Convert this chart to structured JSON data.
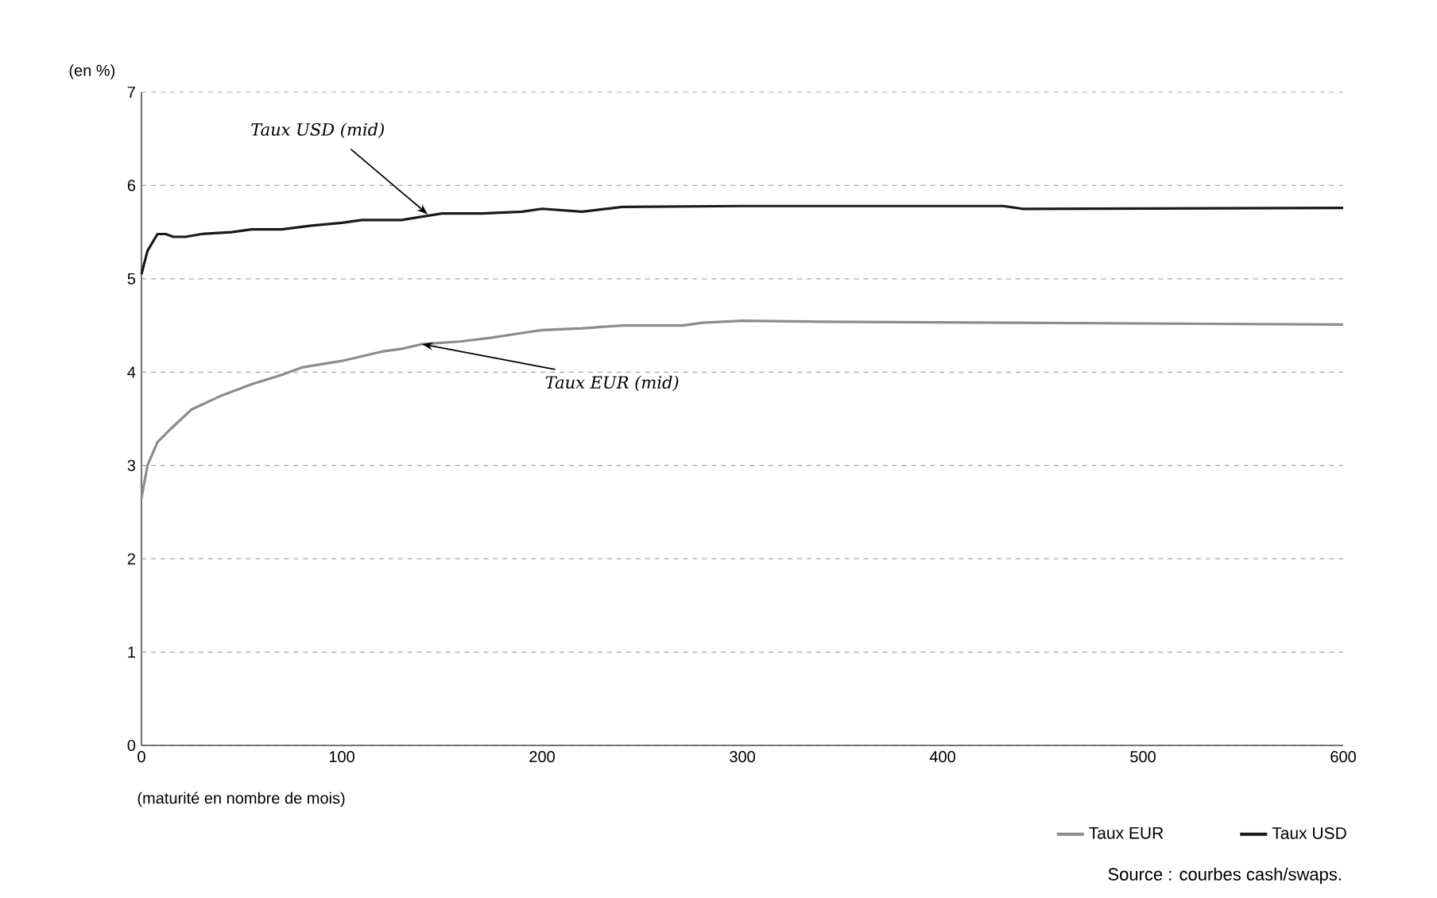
{
  "chart_data": {
    "type": "line",
    "ylabel": "(en %)",
    "xlabel": "(maturité en nombre de mois)",
    "xlim": [
      0,
      600
    ],
    "xticks": [
      0,
      100,
      200,
      300,
      400,
      500,
      600
    ],
    "ylim": [
      0,
      7
    ],
    "yticks": [
      0,
      1,
      2,
      3,
      4,
      5,
      6,
      7
    ],
    "grid": "y",
    "legend": "bottom right",
    "line_style": "solid",
    "marker": "none",
    "series": [
      {
        "name": "Taux EUR",
        "color": "#8c8c8c",
        "x": [
          0,
          3,
          8,
          15,
          25,
          40,
          55,
          70,
          80,
          100,
          120,
          130,
          140,
          160,
          175,
          190,
          200,
          220,
          240,
          270,
          280,
          300,
          340,
          600
        ],
        "values": [
          2.65,
          3.0,
          3.25,
          3.4,
          3.6,
          3.75,
          3.87,
          3.97,
          4.05,
          4.12,
          4.22,
          4.25,
          4.3,
          4.33,
          4.37,
          4.42,
          4.45,
          4.47,
          4.5,
          4.5,
          4.53,
          4.55,
          4.54,
          4.51
        ]
      },
      {
        "name": "Taux USD",
        "color": "#1a1a1a",
        "x": [
          0,
          3,
          8,
          12,
          16,
          22,
          30,
          45,
          55,
          70,
          85,
          100,
          110,
          130,
          150,
          170,
          190,
          200,
          220,
          240,
          300,
          430,
          440,
          600
        ],
        "values": [
          5.05,
          5.3,
          5.48,
          5.48,
          5.45,
          5.45,
          5.48,
          5.5,
          5.53,
          5.53,
          5.57,
          5.6,
          5.63,
          5.63,
          5.7,
          5.7,
          5.72,
          5.75,
          5.72,
          5.77,
          5.78,
          5.78,
          5.75,
          5.76
        ]
      }
    ],
    "annotations": [
      {
        "text": "Taux USD (mid)",
        "x": 143,
        "y": 5.69
      },
      {
        "text": "Taux EUR (mid)",
        "x": 140,
        "y": 4.3
      },
      "Source : courbes cash/swaps."
    ]
  }
}
